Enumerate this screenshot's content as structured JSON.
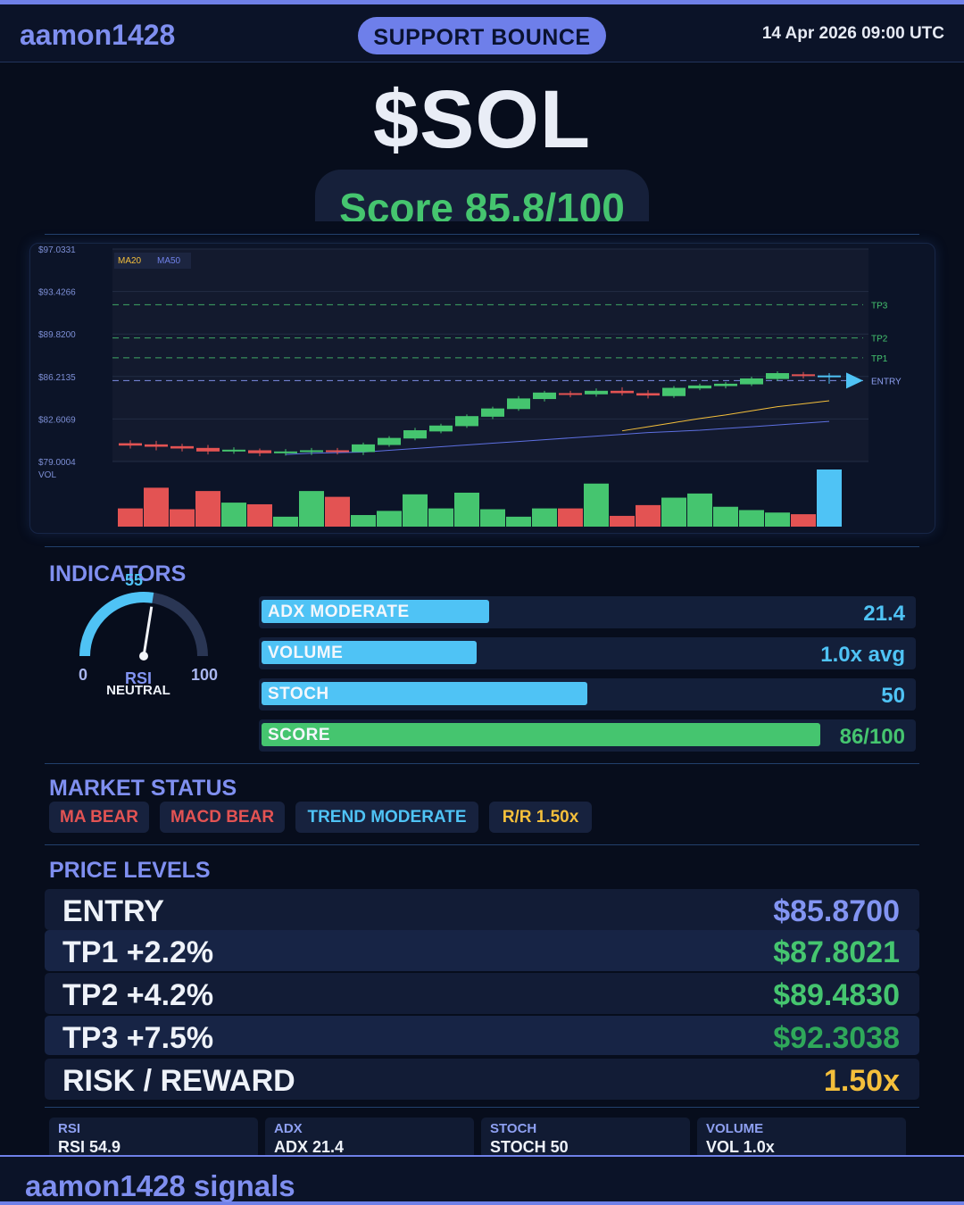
{
  "header": {
    "brand": "aamon1428",
    "signal_type": "SUPPORT BOUNCE",
    "datetime": "14 Apr 2026  09:00 UTC"
  },
  "ticker": "$SOL",
  "score_text": "Score 85.8/100",
  "chart_data": {
    "type": "candlestick",
    "y_tick_labels": [
      "$97.0331",
      "$93.4266",
      "$89.8200",
      "$86.2135",
      "$82.6069",
      "$79.0004"
    ],
    "ylim": [
      79.0004,
      97.0331
    ],
    "legend": [
      "MA20",
      "MA50"
    ],
    "volume_label": "VOL",
    "levels": [
      {
        "name": "TP3",
        "value": 92.3038
      },
      {
        "name": "TP2",
        "value": 89.483
      },
      {
        "name": "TP1",
        "value": 87.8021
      },
      {
        "name": "ENTRY",
        "value": 85.87
      }
    ],
    "candles": [
      {
        "o": 80.55,
        "c": 80.35,
        "h": 80.8,
        "l": 80.1
      },
      {
        "o": 80.45,
        "c": 80.25,
        "h": 80.75,
        "l": 79.95
      },
      {
        "o": 80.3,
        "c": 80.1,
        "h": 80.5,
        "l": 79.85
      },
      {
        "o": 80.15,
        "c": 79.85,
        "h": 80.4,
        "l": 79.6
      },
      {
        "o": 79.85,
        "c": 80.0,
        "h": 80.2,
        "l": 79.65
      },
      {
        "o": 79.95,
        "c": 79.7,
        "h": 80.1,
        "l": 79.45
      },
      {
        "o": 79.7,
        "c": 79.85,
        "h": 80.05,
        "l": 79.5
      },
      {
        "o": 79.8,
        "c": 79.95,
        "h": 80.15,
        "l": 79.55
      },
      {
        "o": 79.95,
        "c": 79.8,
        "h": 80.15,
        "l": 79.6
      },
      {
        "o": 79.8,
        "c": 80.45,
        "h": 80.6,
        "l": 79.55
      },
      {
        "o": 80.4,
        "c": 81.0,
        "h": 81.15,
        "l": 80.25
      },
      {
        "o": 80.95,
        "c": 81.65,
        "h": 81.85,
        "l": 80.8
      },
      {
        "o": 81.55,
        "c": 82.05,
        "h": 82.2,
        "l": 81.4
      },
      {
        "o": 82.0,
        "c": 82.85,
        "h": 83.0,
        "l": 81.85
      },
      {
        "o": 82.8,
        "c": 83.5,
        "h": 83.65,
        "l": 82.6
      },
      {
        "o": 83.45,
        "c": 84.35,
        "h": 84.55,
        "l": 83.3
      },
      {
        "o": 84.3,
        "c": 84.85,
        "h": 85.0,
        "l": 84.1
      },
      {
        "o": 84.8,
        "c": 84.65,
        "h": 85.0,
        "l": 84.45
      },
      {
        "o": 84.7,
        "c": 85.0,
        "h": 85.2,
        "l": 84.5
      },
      {
        "o": 85.0,
        "c": 84.8,
        "h": 85.3,
        "l": 84.6
      },
      {
        "o": 84.8,
        "c": 84.6,
        "h": 85.05,
        "l": 84.35
      },
      {
        "o": 84.55,
        "c": 85.25,
        "h": 85.4,
        "l": 84.4
      },
      {
        "o": 85.2,
        "c": 85.45,
        "h": 85.6,
        "l": 85.05
      },
      {
        "o": 85.4,
        "c": 85.6,
        "h": 85.75,
        "l": 85.2
      },
      {
        "o": 85.55,
        "c": 86.05,
        "h": 86.2,
        "l": 85.4
      },
      {
        "o": 86.0,
        "c": 86.5,
        "h": 86.65,
        "l": 85.85
      },
      {
        "o": 86.4,
        "c": 86.25,
        "h": 86.6,
        "l": 86.05
      },
      {
        "o": 86.3,
        "c": 86.2,
        "h": 86.5,
        "l": 85.6
      }
    ],
    "ma20": [
      null,
      null,
      null,
      null,
      null,
      null,
      null,
      null,
      null,
      null,
      null,
      null,
      null,
      null,
      null,
      null,
      null,
      null,
      null,
      81.6,
      81.95,
      82.3,
      82.65,
      82.95,
      83.3,
      83.65,
      83.9,
      84.15
    ],
    "ma50": [
      null,
      null,
      null,
      null,
      null,
      null,
      79.6,
      79.7,
      79.75,
      79.8,
      79.95,
      80.1,
      80.25,
      80.4,
      80.55,
      80.7,
      80.85,
      81.0,
      81.15,
      81.3,
      81.45,
      81.55,
      81.65,
      81.8,
      81.95,
      82.1,
      82.25,
      82.4
    ],
    "volume": [
      22,
      47,
      21,
      43,
      29,
      27,
      12,
      43,
      36,
      14,
      19,
      39,
      22,
      41,
      21,
      12,
      22,
      22,
      52,
      13,
      26,
      35,
      40,
      24,
      20,
      17,
      15,
      69
    ]
  },
  "indicators": {
    "title": "INDICATORS",
    "rsi": {
      "value": 55,
      "value_text": "55",
      "min_label": "0",
      "max_label": "100",
      "name": "RSI",
      "state": "NEUTRAL"
    },
    "bars": [
      {
        "label": "ADX  MODERATE",
        "value_text": "21.4",
        "fraction": 0.35,
        "color": "#4fc3f5"
      },
      {
        "label": "VOLUME",
        "value_text": "1.0x avg",
        "fraction": 0.33,
        "color": "#4fc3f5"
      },
      {
        "label": "STOCH",
        "value_text": "50",
        "fraction": 0.5,
        "color": "#4fc3f5"
      },
      {
        "label": "SCORE",
        "value_text": "86/100",
        "fraction": 0.858,
        "color": "#45c56f"
      }
    ]
  },
  "market_status": {
    "title": "MARKET STATUS",
    "chips": [
      {
        "label": "MA BEAR",
        "color": "#e35353"
      },
      {
        "label": "MACD BEAR",
        "color": "#e35353"
      },
      {
        "label": "TREND MODERATE",
        "color": "#4fc3f5"
      },
      {
        "label": "R/R  1.50x",
        "color": "#f4bf3b"
      }
    ]
  },
  "price_levels": {
    "title": "PRICE LEVELS",
    "rows": [
      {
        "name": "ENTRY",
        "value": "$85.8700",
        "color": "#8294f2"
      },
      {
        "name": "TP1  +2.2%",
        "value": "$87.8021",
        "color": "#45c56f"
      },
      {
        "name": "TP2  +4.2%",
        "value": "$89.4830",
        "color": "#45c56f"
      },
      {
        "name": "TP3  +7.5%",
        "value": "$92.3038",
        "color": "#2fa85a"
      },
      {
        "name": "RISK / REWARD",
        "value": "1.50x",
        "color": "#f4bf3b"
      }
    ]
  },
  "stats": [
    {
      "key": "RSI",
      "value": "RSI 54.9"
    },
    {
      "key": "ADX",
      "value": "ADX 21.4"
    },
    {
      "key": "STOCH",
      "value": "STOCH 50"
    },
    {
      "key": "VOLUME",
      "value": "VOL 1.0x"
    }
  ],
  "footer": "aamon1428 signals"
}
